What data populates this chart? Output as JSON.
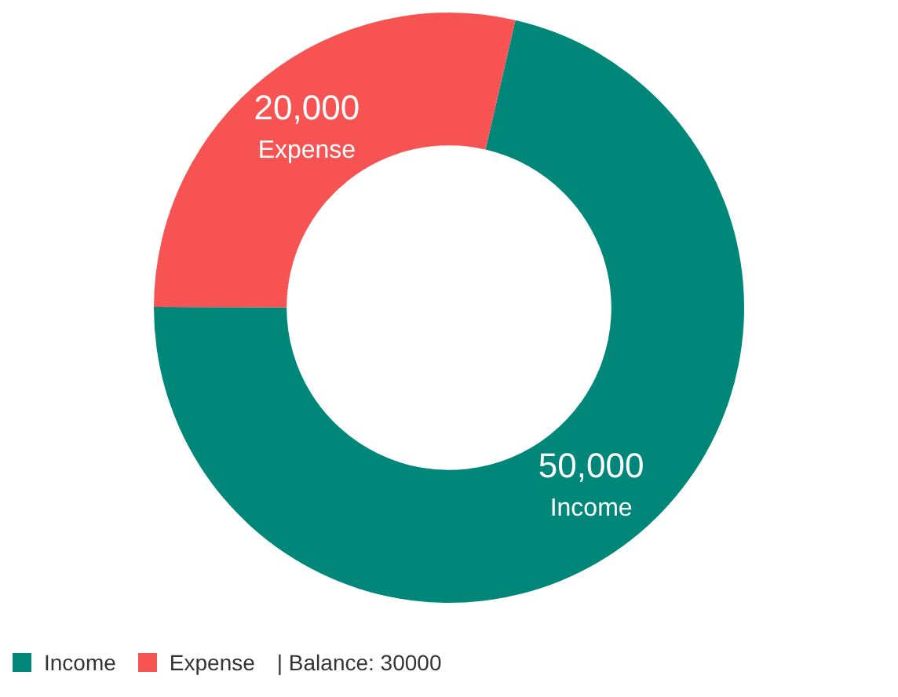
{
  "chart_data": {
    "type": "donut",
    "categories": [
      "Income",
      "Expense"
    ],
    "values": [
      50000,
      20000
    ],
    "colors": [
      "#00877a",
      "#f65352"
    ],
    "value_labels": [
      "50,000",
      "20,000"
    ],
    "legend": "bottom left",
    "annotations": [
      "| Balance: 30000"
    ]
  }
}
